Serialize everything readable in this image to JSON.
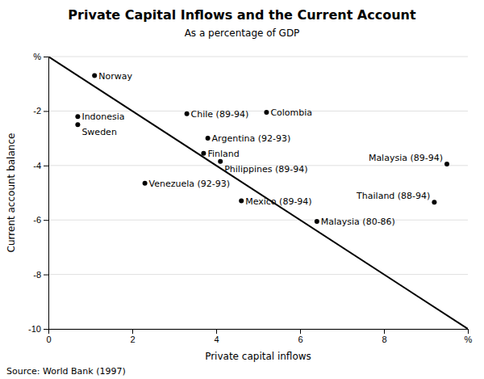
{
  "chart_data": {
    "type": "scatter",
    "title": "Private Capital Inflows and the Current Account",
    "subtitle": "As a percentage of GDP",
    "source": "Source: World Bank (1997)",
    "x_label": "Private capital inflows",
    "y_label": "Current account balance",
    "xlim": [
      0,
      10
    ],
    "ylim": [
      -10,
      0
    ],
    "xticks": [
      0,
      2,
      4,
      6,
      8,
      {
        "value": 10,
        "label": "%"
      }
    ],
    "yticks": [
      {
        "value": 0,
        "label": "%"
      },
      -2,
      -4,
      -6,
      -8,
      -10
    ],
    "grid": "y",
    "series": [
      {
        "type": "scatter",
        "color": "#000000",
        "x": [
          1.1,
          0.7,
          0.7,
          3.3,
          5.2,
          3.8,
          3.7,
          4.1,
          9.5,
          2.3,
          4.6,
          9.2,
          6.4
        ],
        "values": [
          -0.7,
          -2.2,
          -2.5,
          -2.1,
          -2.05,
          -3.0,
          -3.55,
          -3.85,
          -3.95,
          -4.65,
          -5.3,
          -5.35,
          -6.05
        ],
        "labels": [
          "Norway",
          "Indonesia",
          "Sweden",
          "Chile (89-94)",
          "Colombia",
          "Argentina (92-93)",
          "Finland",
          "Philippines (89-94)",
          "Malaysia (89-94)",
          "Venezuela (92-93)",
          "Mexico (89-94)",
          "Thailand (88-94)",
          "Malaysia (80-86)"
        ]
      },
      {
        "type": "line",
        "color": "#000000",
        "x": [
          0,
          10
        ],
        "values": [
          0,
          -10
        ]
      }
    ]
  }
}
